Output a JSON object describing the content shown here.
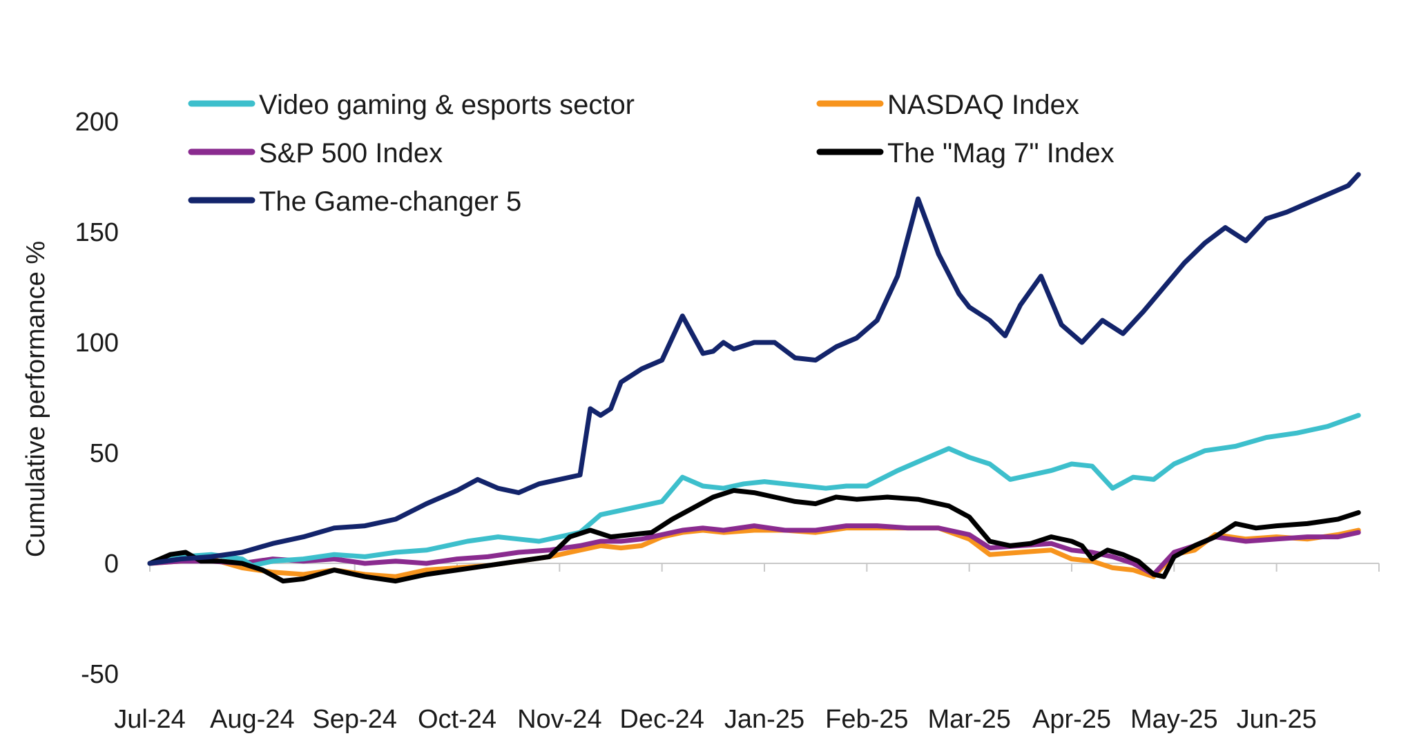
{
  "chart_data": {
    "type": "line",
    "title": "",
    "xlabel": "",
    "ylabel": "Cumulative performance %",
    "ylim": [
      -50,
      200
    ],
    "yticks": [
      -50,
      0,
      50,
      100,
      150,
      200
    ],
    "ytick_labels": [
      "-50",
      "0",
      "50",
      "100",
      "150",
      "200"
    ],
    "xlim": [
      0,
      12
    ],
    "x_tick_labels": [
      "Jul-24",
      "Aug-24",
      "Sep-24",
      "Oct-24",
      "Nov-24",
      "Dec-24",
      "Jan-25",
      "Feb-25",
      "Mar-25",
      "Apr-25",
      "May-25",
      "Jun-25"
    ],
    "grid": false,
    "legend_position": "top",
    "series": [
      {
        "name": "Video gaming & esports sector",
        "color": "#3dbfcc",
        "x": [
          0,
          0.3,
          0.6,
          0.9,
          1.0,
          1.2,
          1.5,
          1.8,
          2.1,
          2.4,
          2.7,
          2.9,
          3.1,
          3.4,
          3.6,
          3.8,
          4.0,
          4.2,
          4.4,
          4.6,
          4.8,
          5.0,
          5.2,
          5.4,
          5.6,
          5.8,
          6.0,
          6.2,
          6.4,
          6.6,
          6.8,
          7.0,
          7.3,
          7.6,
          7.8,
          8.0,
          8.2,
          8.4,
          8.6,
          8.8,
          9.0,
          9.2,
          9.4,
          9.6,
          9.8,
          10.0,
          10.3,
          10.6,
          10.9,
          11.2,
          11.5,
          11.8
        ],
        "y": [
          0,
          3,
          4,
          2,
          -1,
          1,
          2,
          4,
          3,
          5,
          6,
          8,
          10,
          12,
          11,
          10,
          12,
          14,
          22,
          24,
          26,
          28,
          39,
          35,
          34,
          36,
          37,
          36,
          35,
          34,
          35,
          35,
          42,
          48,
          52,
          48,
          45,
          38,
          40,
          42,
          45,
          44,
          34,
          39,
          38,
          45,
          51,
          53,
          57,
          59,
          62,
          67
        ]
      },
      {
        "name": "NASDAQ Index",
        "color": "#f7941d",
        "x": [
          0,
          0.3,
          0.6,
          0.9,
          1.2,
          1.5,
          1.8,
          2.1,
          2.4,
          2.7,
          3.0,
          3.3,
          3.6,
          3.9,
          4.2,
          4.4,
          4.6,
          4.8,
          5.0,
          5.2,
          5.4,
          5.6,
          5.9,
          6.2,
          6.5,
          6.8,
          7.1,
          7.4,
          7.7,
          8.0,
          8.2,
          8.5,
          8.8,
          9.0,
          9.2,
          9.4,
          9.6,
          9.8,
          10.0,
          10.2,
          10.4,
          10.7,
          11.0,
          11.3,
          11.6,
          11.8
        ],
        "y": [
          0,
          1,
          2,
          -2,
          -4,
          -5,
          -3,
          -5,
          -6,
          -3,
          -2,
          -1,
          1,
          3,
          6,
          8,
          7,
          8,
          12,
          14,
          15,
          14,
          15,
          15,
          14,
          16,
          16,
          16,
          16,
          11,
          4,
          5,
          6,
          2,
          1,
          -2,
          -3,
          -6,
          4,
          6,
          13,
          11,
          12,
          11,
          13,
          15
        ]
      },
      {
        "name": "S&P 500 Index",
        "color": "#8a2b8f",
        "x": [
          0,
          0.3,
          0.6,
          0.9,
          1.2,
          1.5,
          1.8,
          2.1,
          2.4,
          2.7,
          3.0,
          3.3,
          3.6,
          3.9,
          4.2,
          4.4,
          4.6,
          4.8,
          5.0,
          5.2,
          5.4,
          5.6,
          5.9,
          6.2,
          6.5,
          6.8,
          7.1,
          7.4,
          7.7,
          8.0,
          8.2,
          8.5,
          8.8,
          9.0,
          9.2,
          9.4,
          9.6,
          9.8,
          10.0,
          10.2,
          10.4,
          10.7,
          11.0,
          11.3,
          11.6,
          11.8
        ],
        "y": [
          0,
          1,
          1,
          0,
          2,
          1,
          2,
          0,
          1,
          0,
          2,
          3,
          5,
          6,
          8,
          10,
          10,
          11,
          13,
          15,
          16,
          15,
          17,
          15,
          15,
          17,
          17,
          16,
          16,
          13,
          7,
          8,
          9,
          6,
          5,
          3,
          0,
          -5,
          5,
          8,
          12,
          10,
          11,
          12,
          12,
          14
        ]
      },
      {
        "name": "The \"Mag 7\" Index",
        "color": "#000000",
        "x": [
          0,
          0.2,
          0.35,
          0.5,
          0.7,
          0.9,
          1.1,
          1.3,
          1.5,
          1.8,
          2.1,
          2.4,
          2.7,
          3.0,
          3.3,
          3.6,
          3.9,
          4.1,
          4.3,
          4.5,
          4.7,
          4.9,
          5.1,
          5.3,
          5.5,
          5.7,
          5.9,
          6.1,
          6.3,
          6.5,
          6.7,
          6.9,
          7.2,
          7.5,
          7.8,
          8.0,
          8.2,
          8.4,
          8.6,
          8.8,
          9.0,
          9.1,
          9.2,
          9.35,
          9.5,
          9.65,
          9.8,
          9.9,
          10.0,
          10.2,
          10.4,
          10.6,
          10.8,
          11.0,
          11.3,
          11.6,
          11.8
        ],
        "y": [
          0,
          4,
          5,
          1,
          1,
          0,
          -3,
          -8,
          -7,
          -3,
          -6,
          -8,
          -5,
          -3,
          -1,
          1,
          3,
          12,
          15,
          12,
          13,
          14,
          20,
          25,
          30,
          33,
          32,
          30,
          28,
          27,
          30,
          29,
          30,
          29,
          26,
          21,
          10,
          8,
          9,
          12,
          10,
          8,
          2,
          6,
          4,
          1,
          -5,
          -6,
          3,
          8,
          12,
          18,
          16,
          17,
          18,
          20,
          23
        ]
      },
      {
        "name": "The Game-changer 5",
        "color": "#13246b",
        "x": [
          0,
          0.3,
          0.6,
          0.9,
          1.2,
          1.5,
          1.8,
          2.1,
          2.4,
          2.7,
          3.0,
          3.2,
          3.4,
          3.6,
          3.8,
          4.0,
          4.2,
          4.3,
          4.4,
          4.5,
          4.6,
          4.8,
          5.0,
          5.2,
          5.4,
          5.5,
          5.6,
          5.7,
          5.9,
          6.1,
          6.3,
          6.5,
          6.7,
          6.9,
          7.1,
          7.3,
          7.5,
          7.7,
          7.9,
          8.0,
          8.2,
          8.35,
          8.5,
          8.7,
          8.9,
          9.1,
          9.3,
          9.5,
          9.7,
          9.9,
          10.1,
          10.3,
          10.5,
          10.7,
          10.9,
          11.1,
          11.3,
          11.5,
          11.7,
          11.8
        ],
        "y": [
          0,
          2,
          3,
          5,
          9,
          12,
          16,
          17,
          20,
          27,
          33,
          38,
          34,
          32,
          36,
          38,
          40,
          70,
          67,
          70,
          82,
          88,
          92,
          112,
          95,
          96,
          100,
          97,
          100,
          100,
          93,
          92,
          98,
          102,
          110,
          130,
          165,
          140,
          122,
          116,
          110,
          103,
          117,
          130,
          108,
          100,
          110,
          104,
          114,
          125,
          136,
          145,
          152,
          146,
          156,
          159,
          163,
          167,
          171,
          176
        ]
      }
    ]
  }
}
